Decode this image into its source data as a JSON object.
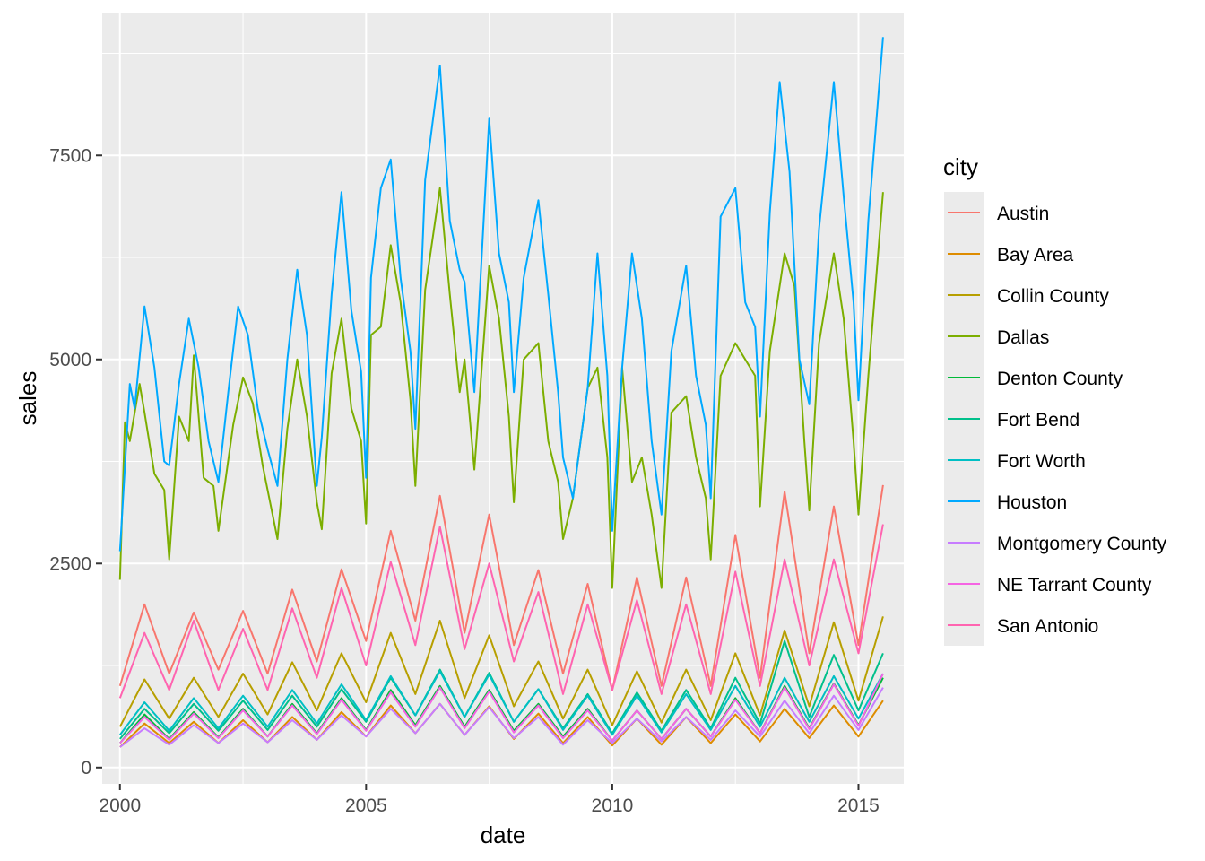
{
  "chart_data": {
    "type": "line",
    "title": "",
    "xlabel": "date",
    "ylabel": "sales",
    "xlim": [
      1999.64,
      2015.92
    ],
    "ylim": [
      -200,
      9250
    ],
    "x_ticks": [
      {
        "value": 2000,
        "label": "2000"
      },
      {
        "value": 2005,
        "label": "2005"
      },
      {
        "value": 2010,
        "label": "2010"
      },
      {
        "value": 2015,
        "label": "2015"
      }
    ],
    "y_ticks": [
      {
        "value": 0,
        "label": "0"
      },
      {
        "value": 2500,
        "label": "2500"
      },
      {
        "value": 5000,
        "label": "5000"
      },
      {
        "value": 7500,
        "label": "7500"
      }
    ],
    "grid": true,
    "legend": {
      "title": "city",
      "position": "right"
    },
    "series": [
      {
        "name": "Austin",
        "color": "#F8766D",
        "x": [
          2000.0,
          2000.5,
          2001.0,
          2001.5,
          2002.0,
          2002.5,
          2003.0,
          2003.5,
          2004.0,
          2004.5,
          2005.0,
          2005.5,
          2006.0,
          2006.5,
          2007.0,
          2007.5,
          2008.0,
          2008.5,
          2009.0,
          2009.5,
          2010.0,
          2010.5,
          2011.0,
          2011.5,
          2012.0,
          2012.5,
          2013.0,
          2013.5,
          2014.0,
          2014.5,
          2015.0,
          2015.5
        ],
        "values": [
          1000,
          2000,
          1150,
          1900,
          1200,
          1920,
          1150,
          2180,
          1300,
          2430,
          1550,
          2900,
          1800,
          3330,
          1650,
          3100,
          1500,
          2420,
          1150,
          2250,
          950,
          2330,
          1000,
          2330,
          1000,
          2850,
          1100,
          3380,
          1400,
          3200,
          1500,
          3460
        ]
      },
      {
        "name": "Bay Area",
        "color": "#DE8C00",
        "x": [
          2000.0,
          2000.5,
          2001.0,
          2001.5,
          2002.0,
          2002.5,
          2003.0,
          2003.5,
          2004.0,
          2004.5,
          2005.0,
          2005.5,
          2006.0,
          2006.5,
          2007.0,
          2007.5,
          2008.0,
          2008.5,
          2009.0,
          2009.5,
          2010.0,
          2010.5,
          2011.0,
          2011.5,
          2012.0,
          2012.5,
          2013.0,
          2013.5,
          2014.0,
          2014.5,
          2015.0,
          2015.5
        ],
        "values": [
          250,
          540,
          300,
          560,
          300,
          580,
          310,
          620,
          340,
          680,
          380,
          760,
          420,
          780,
          400,
          750,
          350,
          660,
          300,
          620,
          270,
          600,
          280,
          620,
          300,
          650,
          320,
          720,
          360,
          760,
          380,
          820
        ]
      },
      {
        "name": "Collin County",
        "color": "#B79F00",
        "x": [
          2000.0,
          2000.5,
          2001.0,
          2001.5,
          2002.0,
          2002.5,
          2003.0,
          2003.5,
          2004.0,
          2004.5,
          2005.0,
          2005.5,
          2006.0,
          2006.5,
          2007.0,
          2007.5,
          2008.0,
          2008.5,
          2009.0,
          2009.5,
          2010.0,
          2010.5,
          2011.0,
          2011.5,
          2012.0,
          2012.5,
          2013.0,
          2013.5,
          2014.0,
          2014.5,
          2015.0,
          2015.5
        ],
        "values": [
          500,
          1080,
          600,
          1100,
          620,
          1150,
          650,
          1290,
          700,
          1400,
          800,
          1650,
          900,
          1800,
          850,
          1620,
          750,
          1300,
          600,
          1200,
          520,
          1180,
          550,
          1200,
          580,
          1400,
          640,
          1680,
          750,
          1780,
          820,
          1850
        ]
      },
      {
        "name": "Dallas",
        "color": "#7CAE00",
        "x": [
          2000.0,
          2000.1,
          2000.2,
          2000.4,
          2000.5,
          2000.7,
          2000.9,
          2001.0,
          2001.2,
          2001.4,
          2001.5,
          2001.7,
          2001.9,
          2002.0,
          2002.3,
          2002.5,
          2002.7,
          2002.9,
          2003.0,
          2003.2,
          2003.4,
          2003.6,
          2003.8,
          2004.0,
          2004.1,
          2004.3,
          2004.5,
          2004.7,
          2004.9,
          2005.0,
          2005.1,
          2005.3,
          2005.5,
          2005.7,
          2005.9,
          2006.0,
          2006.2,
          2006.5,
          2006.7,
          2006.9,
          2007.0,
          2007.2,
          2007.5,
          2007.7,
          2007.9,
          2008.0,
          2008.2,
          2008.5,
          2008.7,
          2008.9,
          2009.0,
          2009.2,
          2009.5,
          2009.7,
          2009.9,
          2010.0,
          2010.2,
          2010.4,
          2010.6,
          2010.8,
          2011.0,
          2011.2,
          2011.5,
          2011.7,
          2011.9,
          2012.0,
          2012.2,
          2012.5,
          2012.7,
          2012.9,
          2013.0,
          2013.2,
          2013.5,
          2013.7,
          2013.9,
          2014.0,
          2014.2,
          2014.5,
          2014.7,
          2014.9,
          2015.0,
          2015.2,
          2015.5
        ],
        "values": [
          2300,
          4230,
          4000,
          4700,
          4350,
          3600,
          3400,
          2550,
          4300,
          4000,
          5050,
          3550,
          3450,
          2900,
          4200,
          4780,
          4460,
          3700,
          3400,
          2800,
          4150,
          5000,
          4300,
          3250,
          2920,
          4830,
          5500,
          4400,
          4000,
          2990,
          5300,
          5400,
          6400,
          5700,
          4500,
          3450,
          5850,
          7100,
          5800,
          4600,
          5000,
          3650,
          6150,
          5500,
          4300,
          3250,
          5000,
          5200,
          4000,
          3500,
          2800,
          3300,
          4650,
          4900,
          3800,
          2200,
          4900,
          3500,
          3800,
          3100,
          2200,
          4350,
          4550,
          3800,
          3300,
          2550,
          4800,
          5200,
          5000,
          4800,
          3200,
          5100,
          6300,
          5900,
          4000,
          3150,
          5200,
          6300,
          5500,
          4000,
          3100,
          4800,
          7050
        ]
      },
      {
        "name": "Denton County",
        "color": "#00BA38",
        "x": [
          2000.0,
          2000.5,
          2001.0,
          2001.5,
          2002.0,
          2002.5,
          2003.0,
          2003.5,
          2004.0,
          2004.5,
          2005.0,
          2005.5,
          2006.0,
          2006.5,
          2007.0,
          2007.5,
          2008.0,
          2008.5,
          2009.0,
          2009.5,
          2010.0,
          2010.5,
          2011.0,
          2011.5,
          2012.0,
          2012.5,
          2013.0,
          2013.5,
          2014.0,
          2014.5,
          2015.0,
          2015.5
        ],
        "values": [
          300,
          650,
          350,
          680,
          370,
          720,
          380,
          780,
          420,
          850,
          460,
          950,
          520,
          1000,
          500,
          950,
          450,
          780,
          380,
          720,
          330,
          700,
          350,
          720,
          380,
          850,
          420,
          1000,
          480,
          1030,
          520,
          1100
        ]
      },
      {
        "name": "Fort Bend",
        "color": "#00C08B",
        "x": [
          2000.0,
          2000.5,
          2001.0,
          2001.5,
          2002.0,
          2002.5,
          2003.0,
          2003.5,
          2004.0,
          2004.5,
          2005.0,
          2005.5,
          2006.0,
          2006.5,
          2007.0,
          2007.5,
          2008.0,
          2008.5,
          2009.0,
          2009.5,
          2010.0,
          2010.5,
          2011.0,
          2011.5,
          2012.0,
          2012.5,
          2013.0,
          2013.5,
          2014.0,
          2014.5,
          2015.0,
          2015.5
        ],
        "values": [
          350,
          720,
          420,
          780,
          450,
          820,
          460,
          880,
          500,
          960,
          560,
          1100,
          640,
          1200,
          620,
          1160,
          560,
          960,
          480,
          900,
          420,
          920,
          450,
          950,
          480,
          1100,
          540,
          1550,
          620,
          1380,
          700,
          1400
        ]
      },
      {
        "name": "Fort Worth",
        "color": "#00BFC4",
        "x": [
          2000.0,
          2000.5,
          2001.0,
          2001.5,
          2002.0,
          2002.5,
          2003.0,
          2003.5,
          2004.0,
          2004.5,
          2005.0,
          2005.5,
          2006.0,
          2006.5,
          2007.0,
          2007.5,
          2008.0,
          2008.5,
          2009.0,
          2009.5,
          2010.0,
          2010.5,
          2011.0,
          2011.5,
          2012.0,
          2012.5,
          2013.0,
          2013.5,
          2014.0,
          2014.5,
          2015.0,
          2015.5
        ],
        "values": [
          400,
          800,
          450,
          850,
          480,
          880,
          500,
          950,
          540,
          1020,
          580,
          1120,
          640,
          1180,
          620,
          1140,
          560,
          960,
          460,
          880,
          400,
          880,
          430,
          900,
          460,
          1000,
          500,
          1100,
          560,
          1120,
          600,
          1150
        ]
      },
      {
        "name": "Houston",
        "color": "#00A9FF",
        "x": [
          2000.0,
          2000.2,
          2000.3,
          2000.5,
          2000.7,
          2000.9,
          2001.0,
          2001.2,
          2001.4,
          2001.6,
          2001.8,
          2002.0,
          2002.2,
          2002.4,
          2002.6,
          2002.8,
          2003.0,
          2003.2,
          2003.4,
          2003.6,
          2003.8,
          2004.0,
          2004.1,
          2004.3,
          2004.5,
          2004.7,
          2004.9,
          2005.0,
          2005.1,
          2005.3,
          2005.5,
          2005.7,
          2005.9,
          2006.0,
          2006.2,
          2006.5,
          2006.7,
          2006.9,
          2007.0,
          2007.2,
          2007.5,
          2007.7,
          2007.9,
          2008.0,
          2008.2,
          2008.5,
          2008.7,
          2008.9,
          2009.0,
          2009.2,
          2009.5,
          2009.7,
          2009.9,
          2010.0,
          2010.2,
          2010.4,
          2010.6,
          2010.8,
          2011.0,
          2011.2,
          2011.5,
          2011.7,
          2011.9,
          2012.0,
          2012.2,
          2012.5,
          2012.7,
          2012.9,
          2013.0,
          2013.2,
          2013.4,
          2013.6,
          2013.8,
          2014.0,
          2014.2,
          2014.5,
          2014.7,
          2014.9,
          2015.0,
          2015.2,
          2015.5
        ],
        "values": [
          2650,
          4700,
          4400,
          5650,
          4900,
          3750,
          3700,
          4700,
          5500,
          4900,
          4000,
          3500,
          4600,
          5650,
          5300,
          4400,
          3900,
          3450,
          5000,
          6100,
          5300,
          3450,
          4050,
          5800,
          7050,
          5600,
          4850,
          3550,
          6000,
          7100,
          7450,
          6000,
          5100,
          4150,
          7200,
          8600,
          6700,
          6100,
          5950,
          4600,
          7950,
          6300,
          5700,
          4600,
          6000,
          6950,
          5800,
          4600,
          3800,
          3300,
          4650,
          6300,
          4800,
          2900,
          4900,
          6300,
          5500,
          4000,
          3100,
          5100,
          6150,
          4800,
          4200,
          3300,
          6750,
          7100,
          5700,
          5400,
          4300,
          6800,
          8400,
          7300,
          5000,
          4450,
          6600,
          8400,
          7000,
          5700,
          4500,
          6700,
          8950
        ]
      },
      {
        "name": "Montgomery County",
        "color": "#C77CFF",
        "x": [
          2000.0,
          2000.5,
          2001.0,
          2001.5,
          2002.0,
          2002.5,
          2003.0,
          2003.5,
          2004.0,
          2004.5,
          2005.0,
          2005.5,
          2006.0,
          2006.5,
          2007.0,
          2007.5,
          2008.0,
          2008.5,
          2009.0,
          2009.5,
          2010.0,
          2010.5,
          2011.0,
          2011.5,
          2012.0,
          2012.5,
          2013.0,
          2013.5,
          2014.0,
          2014.5,
          2015.0,
          2015.5
        ],
        "values": [
          250,
          480,
          280,
          520,
          300,
          540,
          310,
          580,
          340,
          640,
          380,
          720,
          420,
          780,
          400,
          740,
          360,
          620,
          280,
          580,
          300,
          600,
          320,
          620,
          340,
          700,
          380,
          820,
          420,
          880,
          460,
          980
        ]
      },
      {
        "name": "NE Tarrant County",
        "color": "#F564E3",
        "x": [
          2000.0,
          2000.5,
          2001.0,
          2001.5,
          2002.0,
          2002.5,
          2003.0,
          2003.5,
          2004.0,
          2004.5,
          2005.0,
          2005.5,
          2006.0,
          2006.5,
          2007.0,
          2007.5,
          2008.0,
          2008.5,
          2009.0,
          2009.5,
          2010.0,
          2010.5,
          2011.0,
          2011.5,
          2012.0,
          2012.5,
          2013.0,
          2013.5,
          2014.0,
          2014.5,
          2015.0,
          2015.5
        ],
        "values": [
          300,
          620,
          340,
          660,
          360,
          700,
          380,
          760,
          410,
          830,
          450,
          920,
          500,
          980,
          480,
          930,
          430,
          760,
          360,
          700,
          330,
          700,
          350,
          720,
          380,
          830,
          420,
          980,
          470,
          1020,
          510,
          1150
        ]
      },
      {
        "name": "San Antonio",
        "color": "#FF64B0",
        "x": [
          2000.0,
          2000.5,
          2001.0,
          2001.5,
          2002.0,
          2002.5,
          2003.0,
          2003.5,
          2004.0,
          2004.5,
          2005.0,
          2005.5,
          2006.0,
          2006.5,
          2007.0,
          2007.5,
          2008.0,
          2008.5,
          2009.0,
          2009.5,
          2010.0,
          2010.5,
          2011.0,
          2011.5,
          2012.0,
          2012.5,
          2013.0,
          2013.5,
          2014.0,
          2014.5,
          2015.0,
          2015.5
        ],
        "values": [
          850,
          1650,
          950,
          1800,
          950,
          1700,
          950,
          1950,
          1100,
          2200,
          1250,
          2520,
          1500,
          2950,
          1450,
          2500,
          1300,
          2150,
          900,
          2000,
          950,
          2050,
          900,
          2000,
          900,
          2400,
          1000,
          2550,
          1250,
          2550,
          1400,
          2980
        ]
      }
    ]
  }
}
